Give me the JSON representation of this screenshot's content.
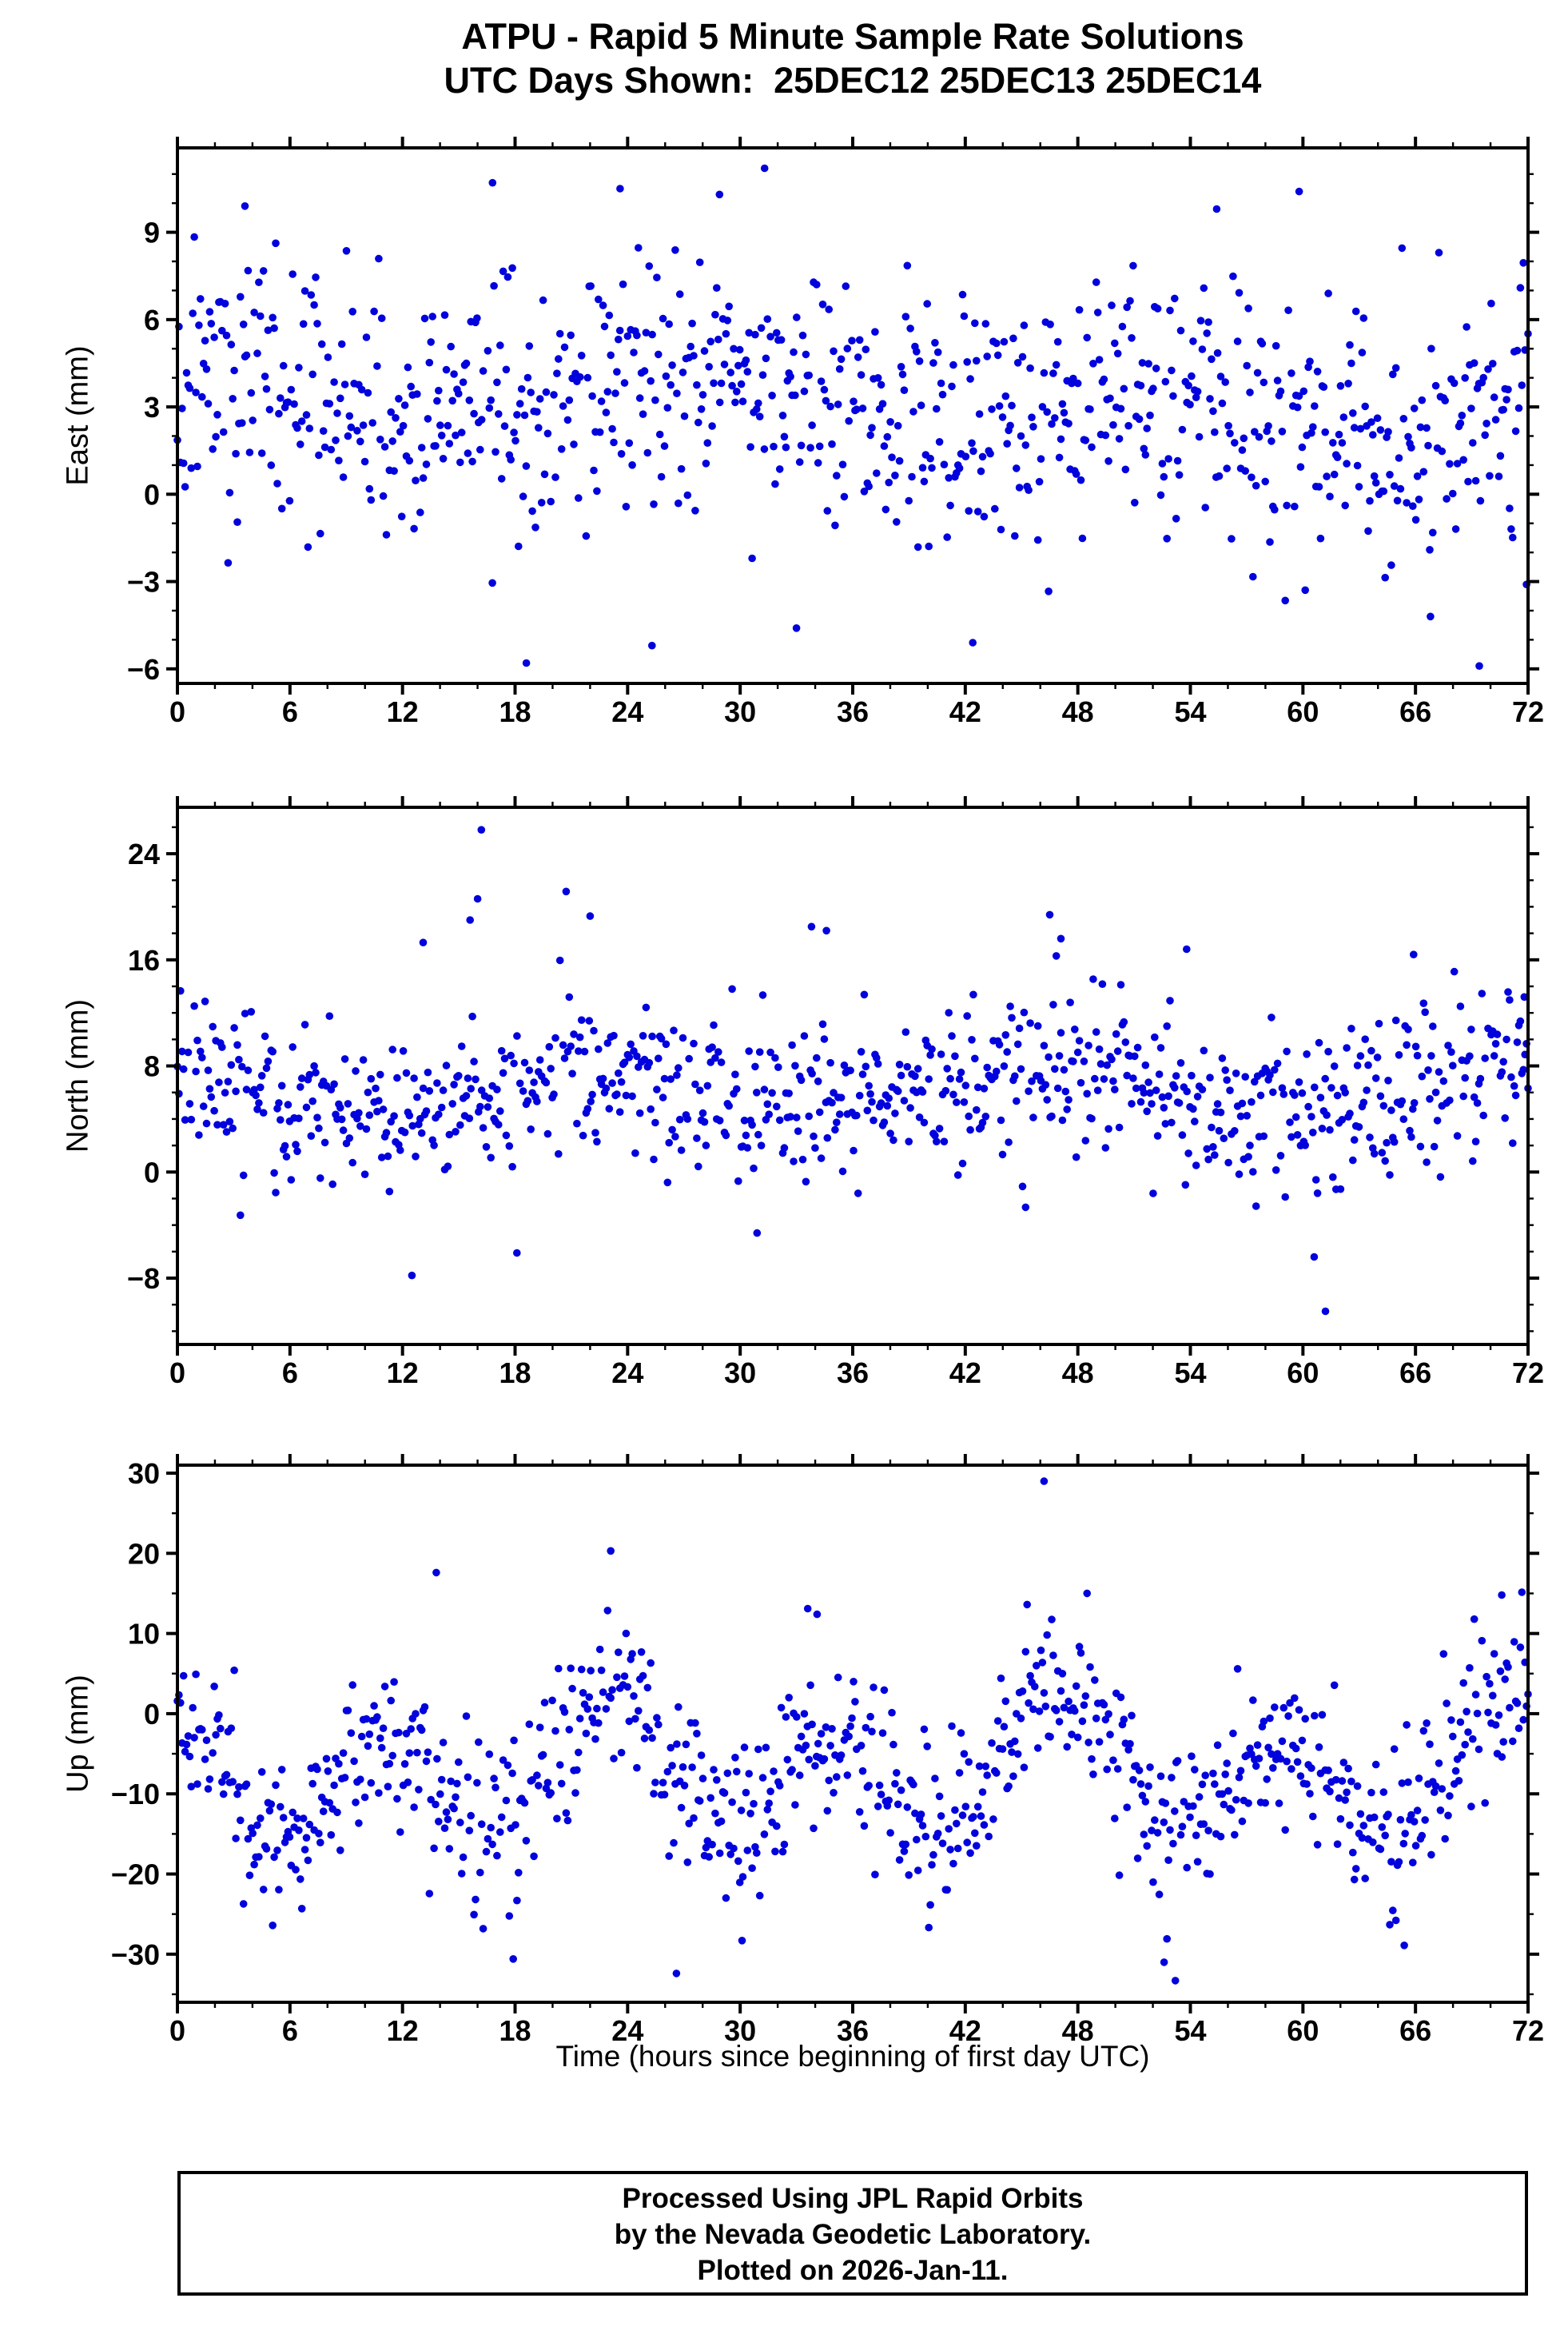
{
  "title": {
    "line1": "ATPU - Rapid 5 Minute Sample Rate Solutions",
    "line2": "UTC Days Shown:  25DEC12 25DEC13 25DEC14"
  },
  "footer": {
    "line1": "Processed Using JPL Rapid Orbits",
    "line2": "by the Nevada Geodetic Laboratory.",
    "line3": "Plotted on 2026-Jan-11."
  },
  "chart_data": {
    "type": "scatter",
    "station": "ATPU",
    "days_shown": [
      "25DEC12",
      "25DEC13",
      "25DEC14"
    ],
    "sample_rate": "5 minute",
    "point_color": "#0202dd",
    "point_radius": 4.8,
    "x": {
      "label": "Time (hours since beginning of first day UTC)",
      "min": 0,
      "max": 72,
      "ticks": [
        0,
        6,
        12,
        18,
        24,
        30,
        36,
        42,
        48,
        54,
        60,
        66,
        72
      ],
      "minor_step": 2
    },
    "panels": [
      {
        "name": "east",
        "ylabel": "East (mm)",
        "ylim": [
          -6.5,
          11.9
        ],
        "ticks": [
          -6,
          -3,
          0,
          3,
          6,
          9
        ],
        "minor_step": 1,
        "observed": {
          "approx_mean": 3.2,
          "approx_min": -5.9,
          "approx_max": 11.2
        },
        "gen": {
          "seed": 11,
          "n": 880,
          "dropout": 0.05,
          "mean": 3.2,
          "trend": -0.008,
          "std": 2.1,
          "tail_p": 0.03,
          "tail_std": 2.2,
          "waves": [
            {
              "period": 24,
              "amp": 0.7,
              "phase": 0.8
            }
          ],
          "clip_margin": 0.2
        },
        "outliers": [
          [
            31.3,
            11.2
          ],
          [
            16.8,
            10.7
          ],
          [
            23.6,
            10.5
          ],
          [
            59.8,
            10.4
          ],
          [
            28.9,
            10.3
          ],
          [
            3.6,
            9.9
          ],
          [
            55.4,
            9.8
          ],
          [
            18.6,
            -5.8
          ],
          [
            25.3,
            -5.2
          ],
          [
            42.4,
            -5.1
          ],
          [
            69.4,
            -5.9
          ],
          [
            33.0,
            -4.6
          ],
          [
            66.8,
            -4.2
          ]
        ]
      },
      {
        "name": "north",
        "ylabel": "North (mm)",
        "ylim": [
          -13,
          27.5
        ],
        "ticks": [
          -8,
          0,
          8,
          16,
          24
        ],
        "minor_step": 2,
        "observed": {
          "approx_mean": 6.1,
          "approx_min": -10.5,
          "approx_max": 25.8
        },
        "gen": {
          "seed": 22,
          "n": 880,
          "dropout": 0.05,
          "mean": 6.1,
          "trend": 0,
          "std": 2.9,
          "tail_p": 0.035,
          "tail_std": 4.5,
          "waves": [
            {
              "period": 24,
              "amp": 1.2,
              "phase": 2.0
            }
          ],
          "clip_margin": 0.2
        },
        "outliers": [
          [
            16.2,
            25.8
          ],
          [
            16.0,
            20.6
          ],
          [
            15.6,
            19.0
          ],
          [
            13.1,
            17.3
          ],
          [
            22.0,
            19.3
          ],
          [
            33.8,
            18.5
          ],
          [
            34.6,
            18.2
          ],
          [
            46.5,
            19.4
          ],
          [
            47.1,
            17.6
          ],
          [
            53.8,
            16.8
          ],
          [
            65.9,
            16.4
          ],
          [
            71.8,
            13.2
          ],
          [
            12.5,
            -7.8
          ],
          [
            18.1,
            -6.1
          ],
          [
            30.9,
            -4.6
          ],
          [
            60.6,
            -6.4
          ],
          [
            61.2,
            -10.5
          ]
        ]
      },
      {
        "name": "up",
        "ylabel": "Up (mm)",
        "ylim": [
          -36,
          31
        ],
        "ticks": [
          -30,
          -20,
          -10,
          0,
          10,
          20,
          30
        ],
        "minor_step": 5,
        "observed": {
          "approx_mean": -8.0,
          "approx_min": -33.3,
          "approx_max": 29.0
        },
        "gen": {
          "seed": 33,
          "n": 880,
          "dropout": 0.05,
          "mean": -7.5,
          "trend": 0,
          "std": 5.0,
          "tail_p": 0.03,
          "tail_std": 6.0,
          "waves": [
            {
              "period": 12,
              "amp": 6.5,
              "phase": 2.094
            },
            {
              "period": 24,
              "amp": 3.2,
              "phase": 1.833
            }
          ],
          "clip_margin": 0.4
        },
        "outliers": [
          [
            46.2,
            29.0
          ],
          [
            23.1,
            20.3
          ],
          [
            13.8,
            17.6
          ],
          [
            70.6,
            14.8
          ],
          [
            33.6,
            13.1
          ],
          [
            34.1,
            12.4
          ],
          [
            53.2,
            -33.3
          ],
          [
            17.9,
            -30.6
          ],
          [
            26.6,
            -32.4
          ],
          [
            65.4,
            -28.9
          ],
          [
            30.1,
            -28.3
          ],
          [
            52.6,
            -31.0
          ]
        ]
      }
    ]
  }
}
